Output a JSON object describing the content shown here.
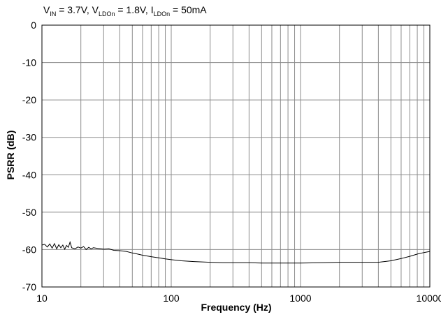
{
  "chart_data": {
    "type": "line",
    "title": {
      "vin_main": "V",
      "vin_sub": "IN",
      "vin_rest": " = 3.7V, ",
      "vldo_main": "V",
      "vldo_sub": "LDOn",
      "vldo_rest": " = 1.8V, ",
      "ildo_main": "I",
      "ildo_sub": "LDOn",
      "ildo_rest": " = 50mA"
    },
    "xlabel": "Frequency (Hz)",
    "ylabel": "PSRR (dB)",
    "x_scale": "log",
    "xlim": [
      10,
      10000
    ],
    "ylim": [
      -70,
      0
    ],
    "x_ticks": [
      {
        "value": 10,
        "label": "10"
      },
      {
        "value": 100,
        "label": "100"
      },
      {
        "value": 1000,
        "label": "1000"
      },
      {
        "value": 10000,
        "label": "10000"
      }
    ],
    "y_ticks": [
      {
        "value": 0,
        "label": "0"
      },
      {
        "value": -10,
        "label": "-10"
      },
      {
        "value": -20,
        "label": "-20"
      },
      {
        "value": -30,
        "label": "-30"
      },
      {
        "value": -40,
        "label": "-40"
      },
      {
        "value": -50,
        "label": "-50"
      },
      {
        "value": -60,
        "label": "-60"
      },
      {
        "value": -70,
        "label": "-70"
      }
    ],
    "grid": true,
    "series": [
      {
        "color": "#000000",
        "x": [
          10,
          10.5,
          11,
          11.5,
          12,
          12.5,
          13,
          13.5,
          14,
          14.5,
          15,
          15.5,
          16,
          16.5,
          17,
          18,
          19,
          20,
          21,
          22,
          23,
          24,
          25,
          27,
          30,
          33,
          36,
          40,
          45,
          50,
          55,
          60,
          70,
          80,
          90,
          100,
          120,
          150,
          200,
          250,
          300,
          400,
          500,
          700,
          1000,
          1500,
          2000,
          3000,
          4000,
          5000,
          6000,
          7000,
          8000,
          9000,
          10000
        ],
        "y": [
          -58.8,
          -58.6,
          -59.3,
          -58.5,
          -59.6,
          -58.4,
          -59.8,
          -58.7,
          -59.5,
          -58.8,
          -59.9,
          -58.9,
          -59.4,
          -58.0,
          -59.5,
          -59.8,
          -59.3,
          -59.6,
          -59.2,
          -60.0,
          -59.4,
          -59.8,
          -59.5,
          -59.7,
          -59.9,
          -59.8,
          -60.2,
          -60.3,
          -60.5,
          -60.9,
          -61.2,
          -61.5,
          -61.9,
          -62.2,
          -62.5,
          -62.7,
          -63.0,
          -63.2,
          -63.4,
          -63.5,
          -63.5,
          -63.5,
          -63.6,
          -63.6,
          -63.6,
          -63.5,
          -63.4,
          -63.4,
          -63.4,
          -63.0,
          -62.4,
          -61.8,
          -61.2,
          -60.8,
          -60.5
        ]
      }
    ]
  }
}
